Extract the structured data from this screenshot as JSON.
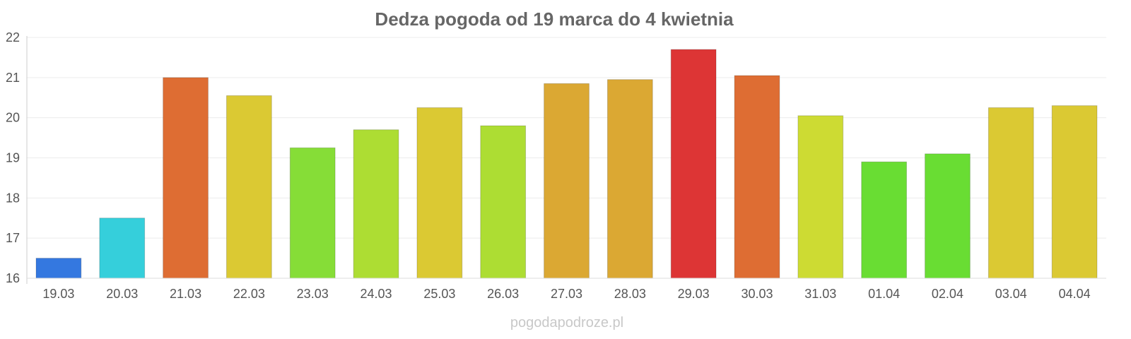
{
  "chart_data": {
    "type": "bar",
    "title": "Dedza pogoda od 19 marca do 4 kwietnia",
    "xlabel": "",
    "ylabel": "",
    "ylim": [
      16,
      22
    ],
    "yticks": [
      "16",
      "17",
      "18",
      "19",
      "20",
      "21",
      "22"
    ],
    "categories": [
      "19.03",
      "20.03",
      "21.03",
      "22.03",
      "23.03",
      "24.03",
      "25.03",
      "26.03",
      "27.03",
      "28.03",
      "29.03",
      "30.03",
      "31.03",
      "01.04",
      "02.04",
      "03.04",
      "04.04"
    ],
    "values": [
      16.5,
      17.5,
      21.0,
      20.55,
      19.25,
      19.7,
      20.25,
      19.8,
      20.85,
      20.95,
      21.7,
      21.05,
      20.05,
      18.9,
      19.1,
      20.25,
      20.3
    ],
    "colors": [
      "#3478e0",
      "#35cfdb",
      "#de6d33",
      "#dbc933",
      "#86dd37",
      "#addd33",
      "#dbc933",
      "#addd33",
      "#dba833",
      "#dba833",
      "#dd3535",
      "#de6d33",
      "#cddb33",
      "#69dd33",
      "#69dd33",
      "#dbc933",
      "#dbc933"
    ],
    "grid": true,
    "legend": "none"
  },
  "watermark": "pogodapodroze.pl"
}
